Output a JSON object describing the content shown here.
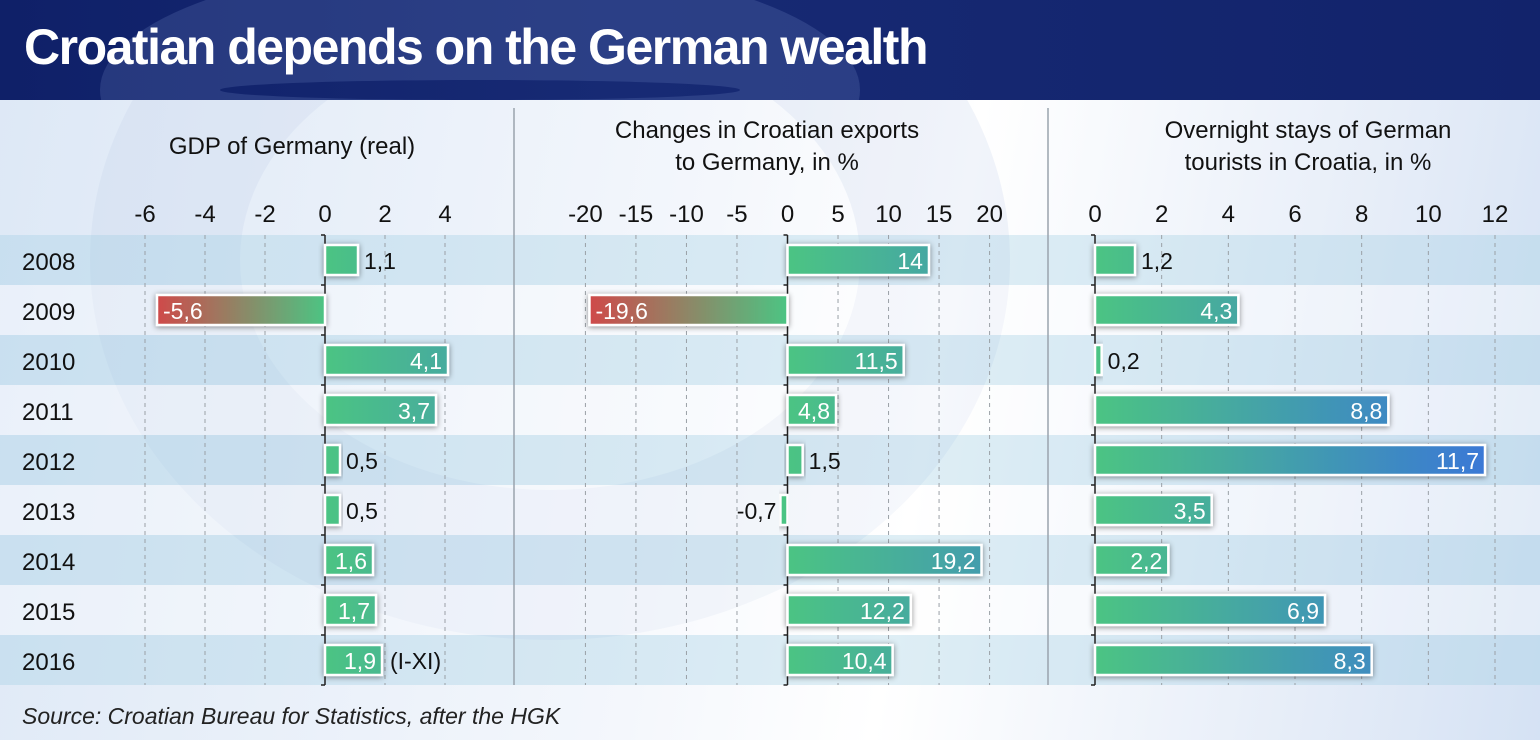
{
  "title": "Croatian depends on the German wealth",
  "source": "Source: Croatian Bureau for Statistics, after the HGK",
  "colors": {
    "header_bg": "#14236e",
    "positive_start": "#4cc483",
    "positive_end": "#3a78d6",
    "negative_start": "#cf4a4a",
    "row_band": "#d3e7f2"
  },
  "chart_data": [
    {
      "type": "bar",
      "orientation": "horizontal",
      "title": "GDP of Germany (real)",
      "title_lines": [
        "GDP of Germany (real)"
      ],
      "categories": [
        "2008",
        "2009",
        "2010",
        "2011",
        "2012",
        "2013",
        "2014",
        "2015",
        "2016"
      ],
      "values": [
        1.1,
        -5.6,
        4.1,
        3.7,
        0.5,
        0.5,
        1.6,
        1.7,
        1.9
      ],
      "labels": [
        "1,1",
        "-5,6",
        "4,1",
        "3,7",
        "0,5",
        "0,5",
        "1,6",
        "1,7",
        "1,9"
      ],
      "annotations": {
        "2016": "(I-XI)"
      },
      "xlim": [
        -6.5,
        5.5
      ],
      "ticks": [
        -6,
        -4,
        -2,
        0,
        2,
        4
      ],
      "grid": true
    },
    {
      "type": "bar",
      "orientation": "horizontal",
      "title": "Changes in Croatian exports to Germany, in %",
      "title_lines": [
        "Changes in Croatian exports",
        "to Germany, in %"
      ],
      "categories": [
        "2008",
        "2009",
        "2010",
        "2011",
        "2012",
        "2013",
        "2014",
        "2015",
        "2016"
      ],
      "values": [
        14,
        -19.6,
        11.5,
        4.8,
        1.5,
        -0.7,
        19.2,
        12.2,
        10.4
      ],
      "labels": [
        "14",
        "-19,6",
        "11,5",
        "4,8",
        "1,5",
        "-0,7",
        "19,2",
        "12,2",
        "10,4"
      ],
      "annotations": {},
      "xlim": [
        -24,
        24
      ],
      "ticks": [
        -20,
        -15,
        -10,
        -5,
        0,
        5,
        10,
        15,
        20
      ],
      "grid": true
    },
    {
      "type": "bar",
      "orientation": "horizontal",
      "title": "Overnight stays of German tourists in Croatia, in %",
      "title_lines": [
        "Overnight stays of German",
        "tourists in Croatia, in %"
      ],
      "categories": [
        "2008",
        "2009",
        "2010",
        "2011",
        "2012",
        "2013",
        "2014",
        "2015",
        "2016"
      ],
      "values": [
        1.2,
        4.3,
        0.2,
        8.8,
        11.7,
        3.5,
        2.2,
        6.9,
        8.3
      ],
      "labels": [
        "1,2",
        "4,3",
        "0,2",
        "8,8",
        "11,7",
        "3,5",
        "2,2",
        "6,9",
        "8,3"
      ],
      "annotations": {},
      "xlim": [
        -0.6,
        13.5
      ],
      "ticks": [
        0,
        2,
        4,
        6,
        8,
        10,
        12
      ],
      "grid": true
    }
  ]
}
